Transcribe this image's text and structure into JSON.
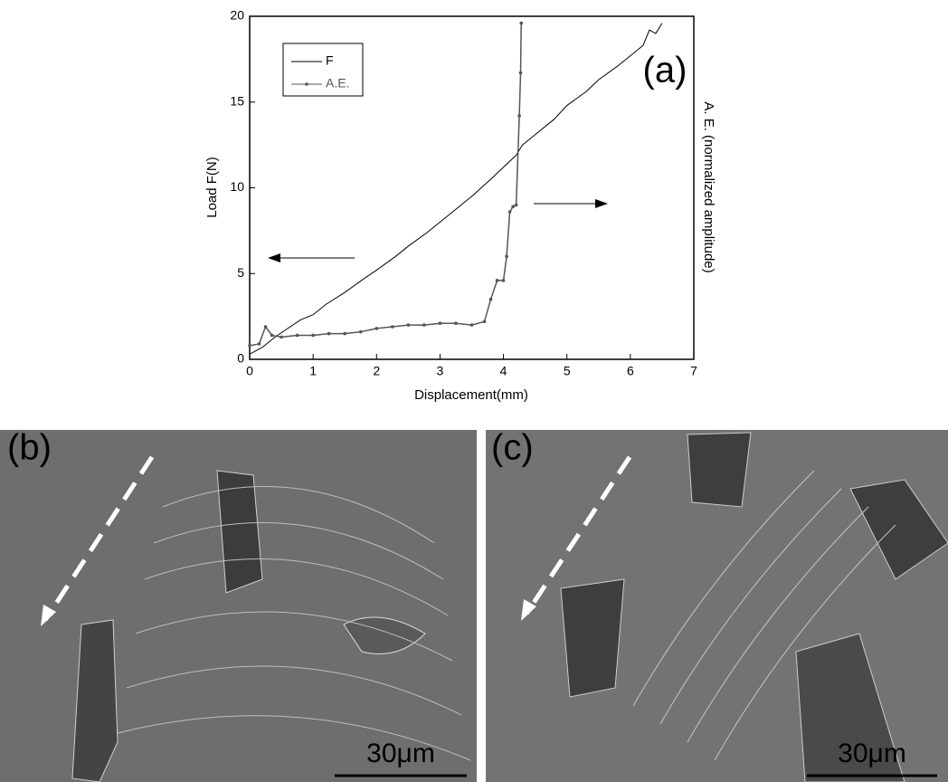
{
  "chart_data": {
    "type": "line",
    "xlabel": "Displacement(mm)",
    "ylabel": "Load F(N)",
    "y2label": "A. E. (normalized amplitude)",
    "annotations": [
      "(a)",
      "(b)",
      "(c)",
      "30μm",
      "30μm"
    ],
    "xlim": [
      0,
      7
    ],
    "xticks": [
      0,
      1,
      2,
      3,
      4,
      5,
      6,
      7
    ],
    "ylim": [
      0,
      20
    ],
    "yticks": [
      0,
      5,
      10,
      15,
      20
    ],
    "legend": "upper left",
    "series": [
      {
        "name": "F",
        "color": "#000000",
        "x": [
          0,
          0.2,
          0.4,
          0.6,
          0.8,
          1.0,
          1.2,
          1.5,
          1.8,
          2.0,
          2.3,
          2.5,
          2.8,
          3.0,
          3.3,
          3.5,
          3.8,
          4.0,
          4.2,
          4.3,
          4.5,
          4.8,
          5.0,
          5.3,
          5.5,
          5.8,
          6.0,
          6.2,
          6.3,
          6.4,
          6.5
        ],
        "values": [
          0.3,
          0.7,
          1.3,
          1.8,
          2.3,
          2.6,
          3.2,
          3.9,
          4.7,
          5.2,
          6.0,
          6.6,
          7.4,
          8.0,
          8.9,
          9.5,
          10.5,
          11.2,
          11.9,
          12.5,
          13.1,
          14.0,
          14.8,
          15.6,
          16.3,
          17.1,
          17.7,
          18.3,
          19.2,
          19.0,
          19.6
        ]
      },
      {
        "name": "A.E.",
        "color": "#555555",
        "x": [
          0,
          0.15,
          0.25,
          0.35,
          0.5,
          0.75,
          1.0,
          1.25,
          1.5,
          1.75,
          2.0,
          2.25,
          2.5,
          2.75,
          3.0,
          3.25,
          3.5,
          3.7,
          3.8,
          3.9,
          4.0,
          4.05,
          4.1,
          4.15,
          4.2,
          4.25,
          4.27,
          4.28
        ],
        "values": [
          0.8,
          0.9,
          1.9,
          1.4,
          1.3,
          1.4,
          1.4,
          1.5,
          1.5,
          1.6,
          1.8,
          1.9,
          2.0,
          2.0,
          2.1,
          2.1,
          2.0,
          2.2,
          3.5,
          4.6,
          4.6,
          6.0,
          8.6,
          8.9,
          9.0,
          14.2,
          16.7,
          19.6
        ]
      }
    ]
  }
}
